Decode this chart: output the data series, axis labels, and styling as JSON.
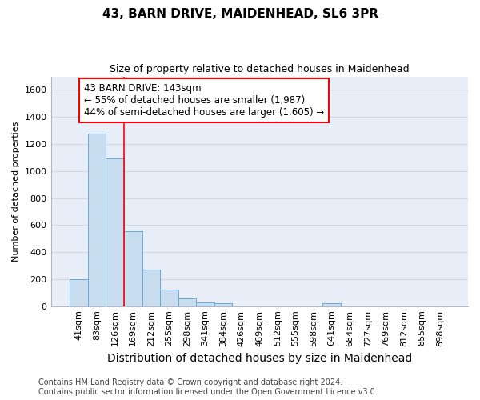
{
  "title": "43, BARN DRIVE, MAIDENHEAD, SL6 3PR",
  "subtitle": "Size of property relative to detached houses in Maidenhead",
  "xlabel": "Distribution of detached houses by size in Maidenhead",
  "ylabel": "Number of detached properties",
  "categories": [
    "41sqm",
    "83sqm",
    "126sqm",
    "169sqm",
    "212sqm",
    "255sqm",
    "298sqm",
    "341sqm",
    "384sqm",
    "426sqm",
    "469sqm",
    "512sqm",
    "555sqm",
    "598sqm",
    "641sqm",
    "684sqm",
    "727sqm",
    "769sqm",
    "812sqm",
    "855sqm",
    "898sqm"
  ],
  "values": [
    200,
    1275,
    1095,
    555,
    270,
    125,
    60,
    30,
    20,
    0,
    0,
    0,
    0,
    0,
    20,
    0,
    0,
    0,
    0,
    0,
    0
  ],
  "bar_color": "#c9ddf0",
  "bar_edge_color": "#6aaad4",
  "red_line_index": 2,
  "annotation_text": "43 BARN DRIVE: 143sqm\n← 55% of detached houses are smaller (1,987)\n44% of semi-detached houses are larger (1,605) →",
  "annotation_box_facecolor": "white",
  "annotation_box_edgecolor": "red",
  "grid_color": "#d0d8e8",
  "axes_bg_color": "#e8eef7",
  "fig_bg_color": "#ffffff",
  "ylim": [
    0,
    1700
  ],
  "yticks": [
    0,
    200,
    400,
    600,
    800,
    1000,
    1200,
    1400,
    1600
  ],
  "footer_line1": "Contains HM Land Registry data © Crown copyright and database right 2024.",
  "footer_line2": "Contains public sector information licensed under the Open Government Licence v3.0.",
  "title_fontsize": 11,
  "subtitle_fontsize": 9,
  "xlabel_fontsize": 10,
  "ylabel_fontsize": 8,
  "tick_fontsize": 8,
  "footer_fontsize": 7,
  "annotation_fontsize": 8.5
}
